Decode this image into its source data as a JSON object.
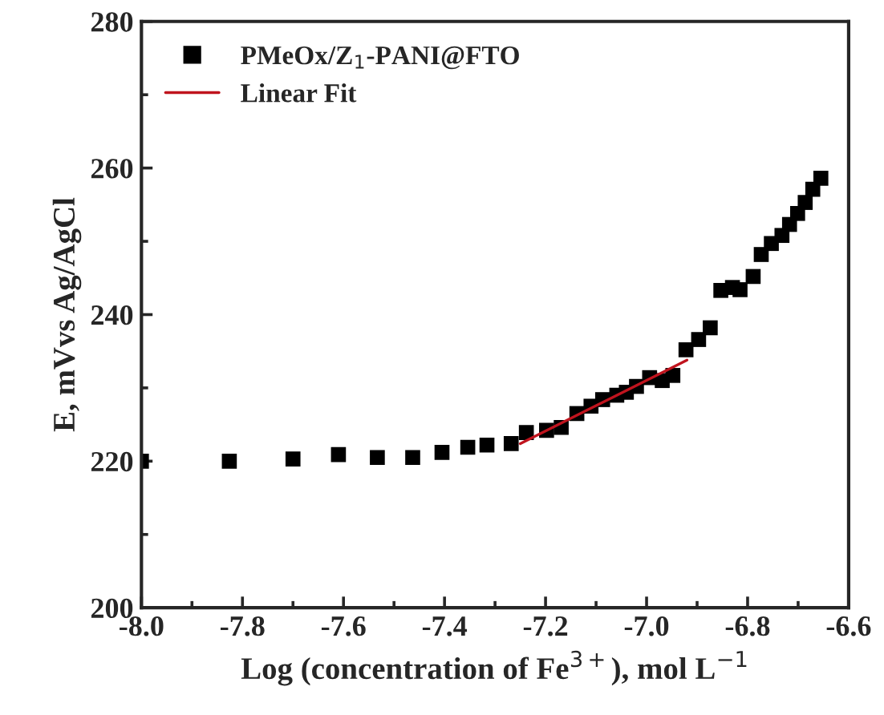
{
  "chart_data": {
    "type": "scatter",
    "xlabel": "Log (concentration of Fe$^{3+}$), mol L$^{−1}$",
    "ylabel": "E, mVvs Ag/AgCl",
    "xlim": [
      -8.0,
      -6.6
    ],
    "xticks": [
      {
        "value": -8.0,
        "label": "-8.0"
      },
      {
        "value": -7.8,
        "label": "-7.8"
      },
      {
        "value": -7.6,
        "label": "-7.6"
      },
      {
        "value": -7.4,
        "label": "-7.4"
      },
      {
        "value": -7.2,
        "label": "-7.2"
      },
      {
        "value": -7.0,
        "label": "-7.0"
      },
      {
        "value": -6.8,
        "label": "-6.8"
      },
      {
        "value": -6.6,
        "label": "-6.6"
      }
    ],
    "ylim": [
      200,
      280
    ],
    "yticks": [
      200,
      220,
      240,
      260,
      280
    ],
    "grid": false,
    "legend": "top left",
    "series": [
      {
        "name": "PMeOx/Z$_{1}$-PANI@FTO",
        "color": "#000000",
        "marker": "square",
        "x": [
          -8.0,
          -7.826,
          -7.7,
          -7.61,
          -7.533,
          -7.463,
          -7.405,
          -7.354,
          -7.316,
          -7.268,
          -7.238,
          -7.198,
          -7.169,
          -7.138,
          -7.11,
          -7.087,
          -7.059,
          -7.04,
          -7.02,
          -6.994,
          -6.969,
          -6.948,
          -6.922,
          -6.897,
          -6.874,
          -6.853,
          -6.83,
          -6.815,
          -6.789,
          -6.773,
          -6.753,
          -6.732,
          -6.717,
          -6.701,
          -6.686,
          -6.671,
          -6.655
        ],
        "values": [
          220.0,
          220.0,
          220.3,
          220.9,
          220.5,
          220.5,
          221.2,
          221.9,
          222.2,
          222.4,
          223.9,
          224.2,
          224.6,
          226.5,
          227.5,
          228.4,
          229.0,
          229.4,
          230.2,
          231.4,
          231.0,
          231.7,
          235.2,
          236.6,
          238.2,
          243.3,
          243.7,
          243.4,
          245.2,
          248.2,
          249.7,
          250.8,
          252.3,
          253.8,
          255.3,
          257.1,
          258.6
        ]
      },
      {
        "name": "Linear Fit",
        "color": "#c0141e",
        "type": "line",
        "x": [
          -7.25,
          -6.92
        ],
        "values": [
          222.4,
          233.8
        ]
      }
    ]
  }
}
